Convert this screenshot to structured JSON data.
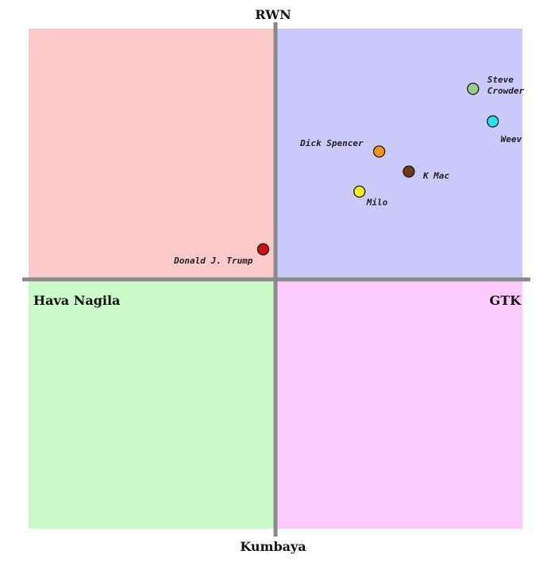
{
  "chart_data": {
    "type": "scatter",
    "xlim": [
      -10,
      10
    ],
    "ylim": [
      -10,
      10
    ],
    "grid": false,
    "axis_labels": {
      "top": "RWN",
      "bottom": "Kumbaya",
      "left": "Hava Nagila",
      "right": "GTK"
    },
    "quadrant_colors": {
      "top_left": "#fbcaca",
      "top_right": "#c9caf9",
      "bottom_left": "#c9fac8",
      "bottom_right": "#fccafc"
    },
    "axis_color": "#8a8a8a",
    "points": [
      {
        "label": "Steve Crowder",
        "x": 8.0,
        "y": 7.6,
        "color": "#9ccc8c"
      },
      {
        "label": "Weev",
        "x": 8.8,
        "y": 6.3,
        "color": "#22e3ef"
      },
      {
        "label": "Dick Spencer",
        "x": 4.2,
        "y": 5.1,
        "color": "#f7961f"
      },
      {
        "label": "K Mac",
        "x": 5.4,
        "y": 4.3,
        "color": "#6f3a15"
      },
      {
        "label": "Milo",
        "x": 3.4,
        "y": 3.5,
        "color": "#f5eb1c"
      },
      {
        "label": "Donald J. Trump",
        "x": -0.5,
        "y": 1.2,
        "color": "#d01010"
      }
    ]
  }
}
